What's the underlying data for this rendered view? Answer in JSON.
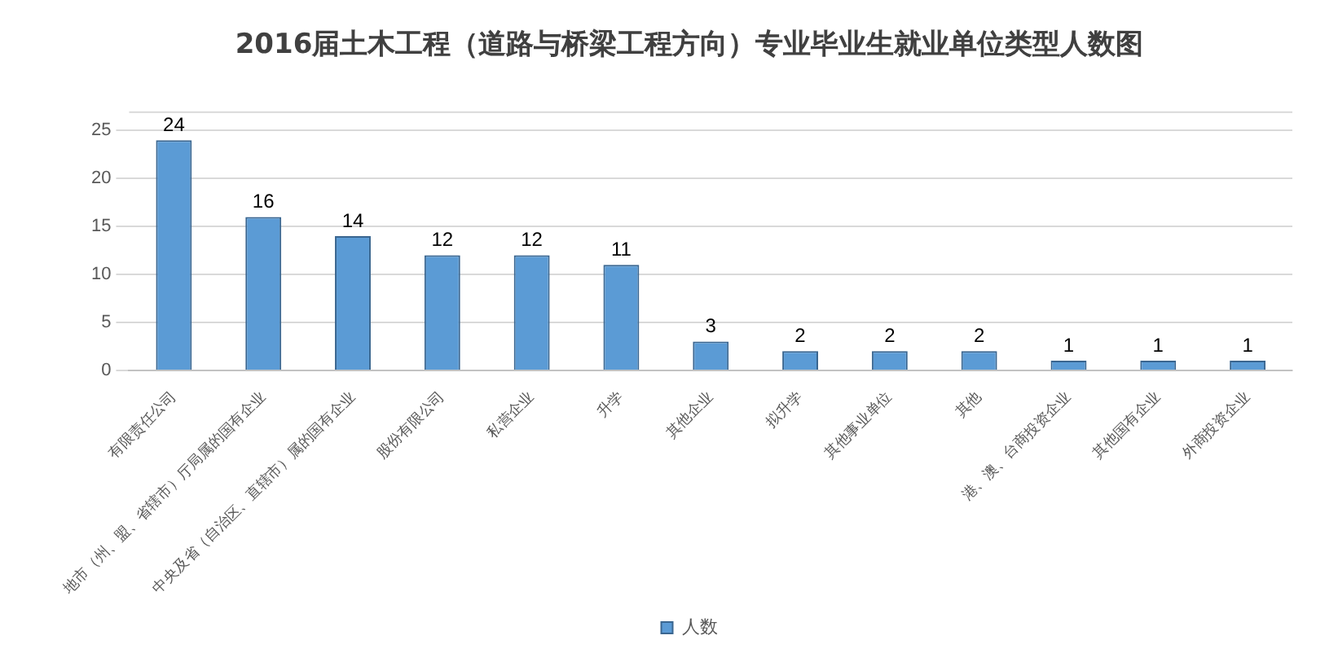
{
  "chart_data": {
    "type": "bar",
    "title": "2016届土木工程（道路与桥梁工程方向）专业毕业生就业单位类型人数图",
    "categories": [
      "有限责任公司",
      "地市（州、盟、省辖市）厅局属的国有企业",
      "中央及省（自治区、直辖市）属的国有企业",
      "股份有限公司",
      "私营企业",
      "升学",
      "其他企业",
      "拟升学",
      "其他事业单位",
      "其他",
      "港、澳、台商投资企业",
      "其他国有企业",
      "外商投资企业"
    ],
    "series": [
      {
        "name": "人数",
        "color": "#5b9bd5",
        "values": [
          24,
          16,
          14,
          12,
          12,
          11,
          3,
          2,
          2,
          2,
          1,
          1,
          1
        ]
      }
    ],
    "ylim": [
      0,
      27
    ],
    "yticks": [
      0,
      5,
      10,
      15,
      20,
      25
    ],
    "grid": "y",
    "legend": "bottom",
    "data_labels": true
  }
}
